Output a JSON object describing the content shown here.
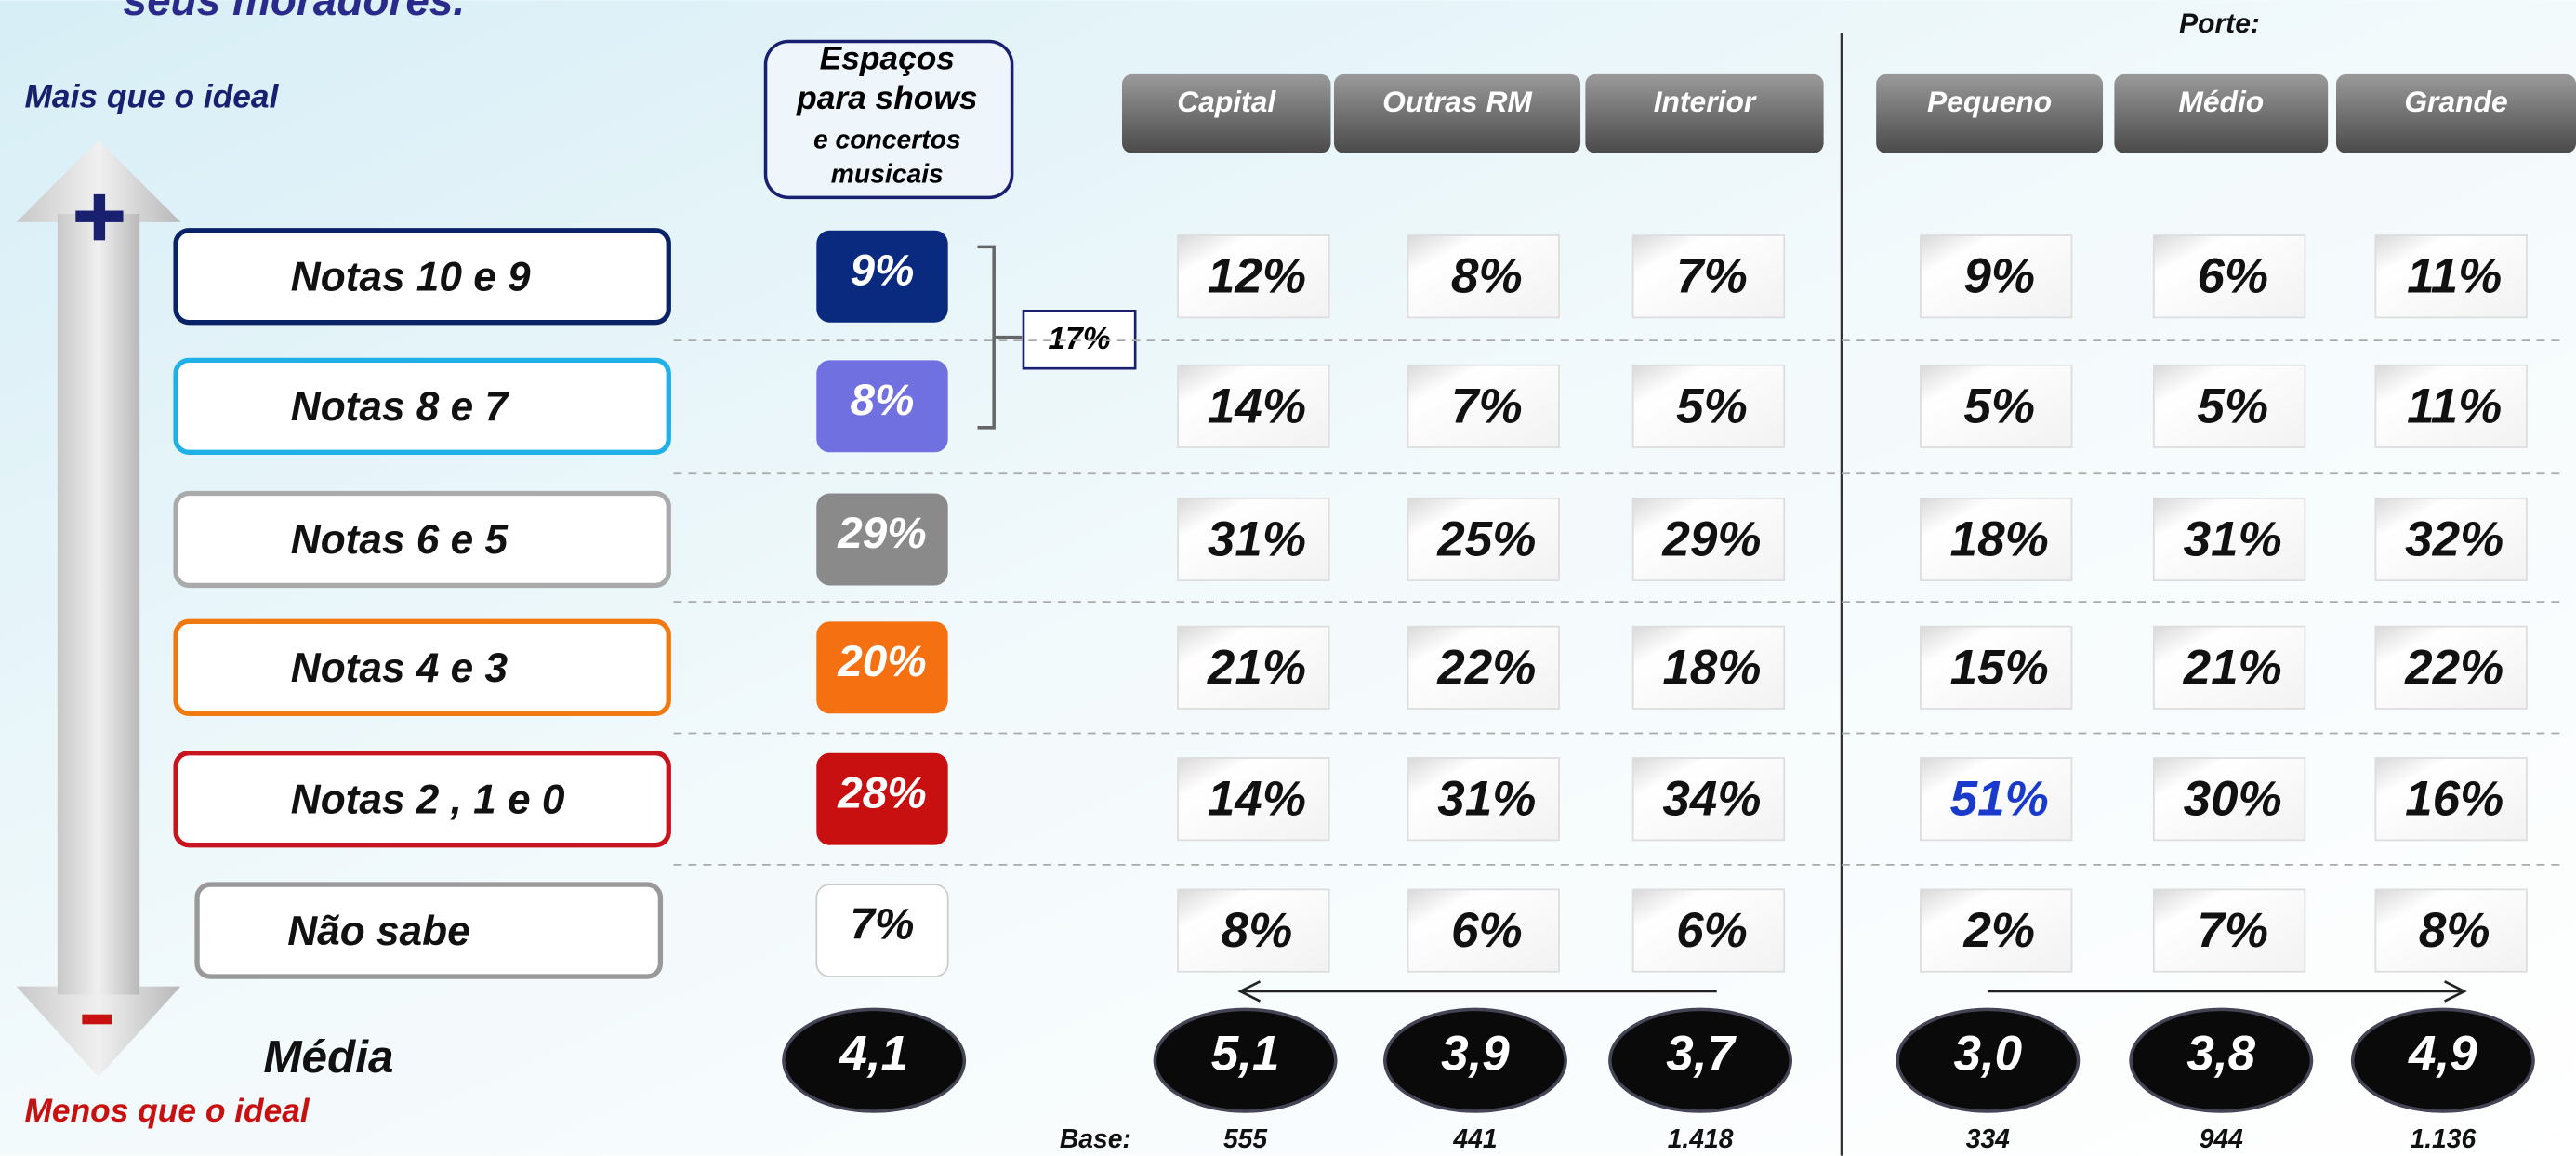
{
  "header": {
    "title": "seus moradores.",
    "more_label": "Mais que o ideal",
    "less_label": "Menos que o ideal",
    "size_label": "Porte:"
  },
  "total_header": {
    "title": "Espaços para shows",
    "subtitle": "e concertos musicais"
  },
  "columns": [
    "Capital",
    "Outras RM",
    "Interior",
    "Pequeno",
    "Médio",
    "Grande"
  ],
  "rows": [
    {
      "label": "Notas 10 e 9",
      "total": "9%",
      "cells": [
        "12%",
        "8%",
        "7%",
        "9%",
        "6%",
        "11%"
      ]
    },
    {
      "label": "Notas 8 e 7",
      "total": "8%",
      "cells": [
        "14%",
        "7%",
        "5%",
        "5%",
        "5%",
        "11%"
      ]
    },
    {
      "label": "Notas 6 e 5",
      "total": "29%",
      "cells": [
        "31%",
        "25%",
        "29%",
        "18%",
        "31%",
        "32%"
      ]
    },
    {
      "label": "Notas 4 e 3",
      "total": "20%",
      "cells": [
        "21%",
        "22%",
        "18%",
        "15%",
        "21%",
        "22%"
      ]
    },
    {
      "label": "Notas 2 , 1 e 0",
      "total": "28%",
      "cells": [
        "14%",
        "31%",
        "34%",
        "51%",
        "30%",
        "16%"
      ]
    },
    {
      "label": "Não sabe",
      "total": "7%",
      "cells": [
        "8%",
        "6%",
        "6%",
        "2%",
        "7%",
        "8%"
      ]
    }
  ],
  "bracket": "17%",
  "mean": {
    "label": "Média",
    "total": "4,1",
    "cells": [
      "5,1",
      "3,9",
      "3,7",
      "3,0",
      "3,8",
      "4,9"
    ]
  },
  "base": {
    "label": "Base:",
    "cells": [
      "555",
      "441",
      "1.418",
      "334",
      "944",
      "1.136"
    ]
  }
}
